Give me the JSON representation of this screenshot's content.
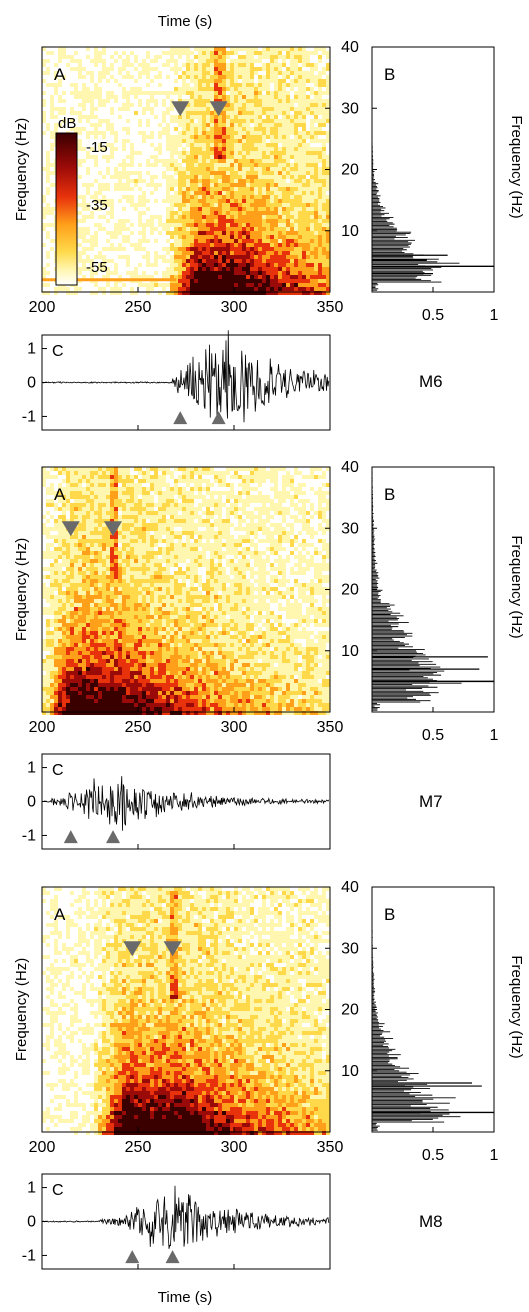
{
  "figure": {
    "time_axis_label": "Time (s)",
    "frequency_axis_label": "Frequency (Hz)",
    "colorbar": {
      "unit": "dB",
      "ticks": [
        "-15",
        "-35",
        "-55"
      ]
    }
  },
  "chart_data": [
    {
      "type": "heatmap",
      "station": "M6",
      "panel_label": "A",
      "xlabel": "Time (s)",
      "ylabel": "Frequency (Hz)",
      "xlim": [
        200,
        350
      ],
      "ylim": [
        0,
        40
      ],
      "x_ticks": [
        "200",
        "250",
        "300",
        "350"
      ],
      "y_ticks": [
        "10",
        "20",
        "30",
        "40"
      ],
      "colorbar_range_db": [
        -60,
        -10
      ],
      "energy_window_s": [
        270,
        350
      ],
      "energy_peak_s": 298,
      "energy_freq_range_hz": [
        1,
        40
      ],
      "marker_times_s": [
        272,
        292
      ],
      "low_freq_noise_line_hz": 2,
      "colors": [
        "#ffffff",
        "#fff6b0",
        "#ffd94a",
        "#ff9f1a",
        "#e8320c",
        "#9a0a08",
        "#3a0000"
      ]
    },
    {
      "type": "bar",
      "station": "M6",
      "panel_label": "B",
      "orientation": "horizontal",
      "ylabel": "Frequency (Hz)",
      "xlim": [
        0,
        1
      ],
      "ylim": [
        0,
        40
      ],
      "x_ticks": [
        "0.5",
        "1"
      ],
      "y_ticks": [
        "10",
        "20",
        "30",
        "40"
      ],
      "spectrum_peak_hz": 4.2,
      "spectrum_secondary_hz": [
        3.0,
        5.2,
        6.0
      ],
      "spectrum_secondary_values": [
        0.5,
        0.45,
        0.62
      ],
      "spectrum_rolloff_hz": 8
    },
    {
      "type": "line",
      "station": "M6",
      "panel_label": "C",
      "label": "M6",
      "xlim": [
        200,
        350
      ],
      "ylim": [
        -1.4,
        1.4
      ],
      "y_ticks": [
        "1",
        "0",
        "-1"
      ],
      "envelope_peak_s": 298,
      "envelope_peak_amplitude": 1.3,
      "envelope_start_s": 268,
      "marker_times_s": [
        272,
        292
      ]
    },
    {
      "type": "heatmap",
      "station": "M7",
      "panel_label": "A",
      "xlabel": "Time (s)",
      "ylabel": "Frequency (Hz)",
      "xlim": [
        200,
        350
      ],
      "ylim": [
        0,
        40
      ],
      "x_ticks": [
        "200",
        "250",
        "300",
        "350"
      ],
      "y_ticks": [
        "10",
        "20",
        "30",
        "40"
      ],
      "energy_window_s": [
        205,
        350
      ],
      "energy_peak_s": 238,
      "energy_freq_range_hz": [
        1,
        40
      ],
      "marker_times_s": [
        215,
        237
      ]
    },
    {
      "type": "bar",
      "station": "M7",
      "panel_label": "B",
      "orientation": "horizontal",
      "ylabel": "Frequency (Hz)",
      "xlim": [
        0,
        1
      ],
      "ylim": [
        0,
        40
      ],
      "x_ticks": [
        "0.5",
        "1"
      ],
      "y_ticks": [
        "10",
        "20",
        "30",
        "40"
      ],
      "spectrum_peak_hz": 5.0,
      "spectrum_secondary_hz": [
        7.0,
        9.0
      ],
      "spectrum_secondary_values": [
        0.88,
        0.95
      ],
      "spectrum_rolloff_hz": 14
    },
    {
      "type": "line",
      "station": "M7",
      "panel_label": "C",
      "label": "M7",
      "xlim": [
        200,
        350
      ],
      "ylim": [
        -1.4,
        1.4
      ],
      "y_ticks": [
        "1",
        "0",
        "-1"
      ],
      "envelope_peak_s": 240,
      "envelope_peak_amplitude": 0.8,
      "envelope_start_s": 205,
      "marker_times_s": [
        215,
        237
      ]
    },
    {
      "type": "heatmap",
      "station": "M8",
      "panel_label": "A",
      "xlabel": "Time (s)",
      "ylabel": "Frequency (Hz)",
      "xlim": [
        200,
        350
      ],
      "ylim": [
        0,
        40
      ],
      "x_ticks": [
        "200",
        "250",
        "300",
        "350"
      ],
      "y_ticks": [
        "10",
        "20",
        "30",
        "40"
      ],
      "energy_window_s": [
        232,
        350
      ],
      "energy_peak_s": 272,
      "energy_freq_range_hz": [
        1,
        40
      ],
      "marker_times_s": [
        247,
        268
      ]
    },
    {
      "type": "bar",
      "station": "M8",
      "panel_label": "B",
      "orientation": "horizontal",
      "ylabel": "Frequency (Hz)",
      "xlim": [
        0,
        1
      ],
      "ylim": [
        0,
        40
      ],
      "x_ticks": [
        "0.5",
        "1"
      ],
      "y_ticks": [
        "10",
        "20",
        "30",
        "40"
      ],
      "spectrum_peak_hz": 3.2,
      "spectrum_secondary_hz": [
        7.5,
        8.0
      ],
      "spectrum_secondary_values": [
        0.9,
        0.82
      ],
      "spectrum_rolloff_hz": 12
    },
    {
      "type": "line",
      "station": "M8",
      "panel_label": "C",
      "label": "M8",
      "xlim": [
        200,
        350
      ],
      "ylim": [
        -1.4,
        1.4
      ],
      "y_ticks": [
        "1",
        "0",
        "-1"
      ],
      "envelope_peak_s": 272,
      "envelope_peak_amplitude": 0.95,
      "envelope_start_s": 230,
      "marker_times_s": [
        247,
        268
      ]
    }
  ]
}
